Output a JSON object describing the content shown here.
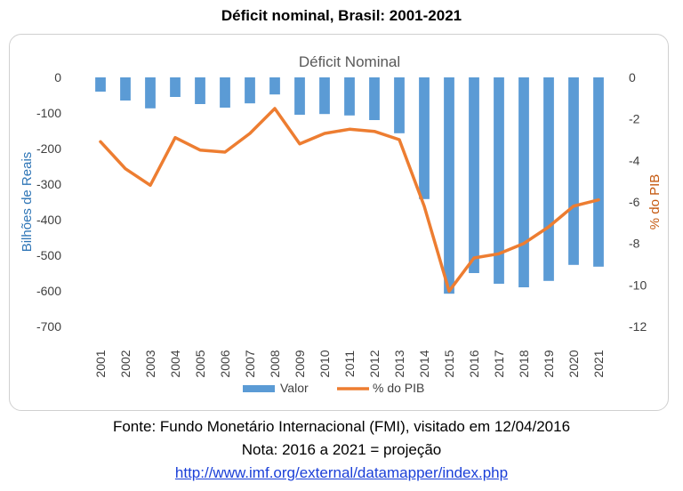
{
  "page_title": "Déficit nominal, Brasil: 2001-2021",
  "footer": {
    "source": "Fonte: Fundo Monetário Internacional (FMI), visitado em 12/04/2016",
    "note": "Nota: 2016 a 2021 = projeção",
    "link": "http://www.imf.org/external/datamapper/index.php"
  },
  "colors": {
    "bar": "#5b9bd5",
    "line": "#ed7d31",
    "left_axis_label": "#2e75b6",
    "right_axis_label": "#c55a11"
  },
  "chart_data": {
    "type": "bar",
    "title": "Déficit Nominal",
    "categories": [
      "2001",
      "2002",
      "2003",
      "2004",
      "2005",
      "2006",
      "2007",
      "2008",
      "2009",
      "2010",
      "2011",
      "2012",
      "2013",
      "2014",
      "2015",
      "2016",
      "2017",
      "2018",
      "2019",
      "2020",
      "2021"
    ],
    "series": [
      {
        "name": "Valor",
        "type": "bar",
        "axis": "left",
        "values": [
          -40,
          -65,
          -87,
          -55,
          -75,
          -85,
          -73,
          -48,
          -105,
          -103,
          -107,
          -120,
          -157,
          -342,
          -608,
          -550,
          -580,
          -590,
          -572,
          -527,
          -532
        ]
      },
      {
        "name": "% do PIB",
        "type": "line",
        "axis": "right",
        "values": [
          -3.1,
          -4.4,
          -5.2,
          -2.9,
          -3.5,
          -3.6,
          -2.7,
          -1.5,
          -3.2,
          -2.7,
          -2.5,
          -2.6,
          -3.0,
          -6.2,
          -10.3,
          -8.7,
          -8.5,
          -8.0,
          -7.2,
          -6.2,
          -5.9
        ]
      }
    ],
    "ylabel": "Bilhões de Reais",
    "y2label": "% do PIB",
    "ylim": [
      -700,
      0
    ],
    "y2lim": [
      -12,
      0
    ],
    "yticks": [
      0,
      -100,
      -200,
      -300,
      -400,
      -500,
      -600,
      -700
    ],
    "y2ticks": [
      0,
      -2,
      -4,
      -6,
      -8,
      -10,
      -12
    ],
    "legend": [
      "Valor",
      "% do PIB"
    ],
    "legend_position": "bottom",
    "grid": false
  }
}
